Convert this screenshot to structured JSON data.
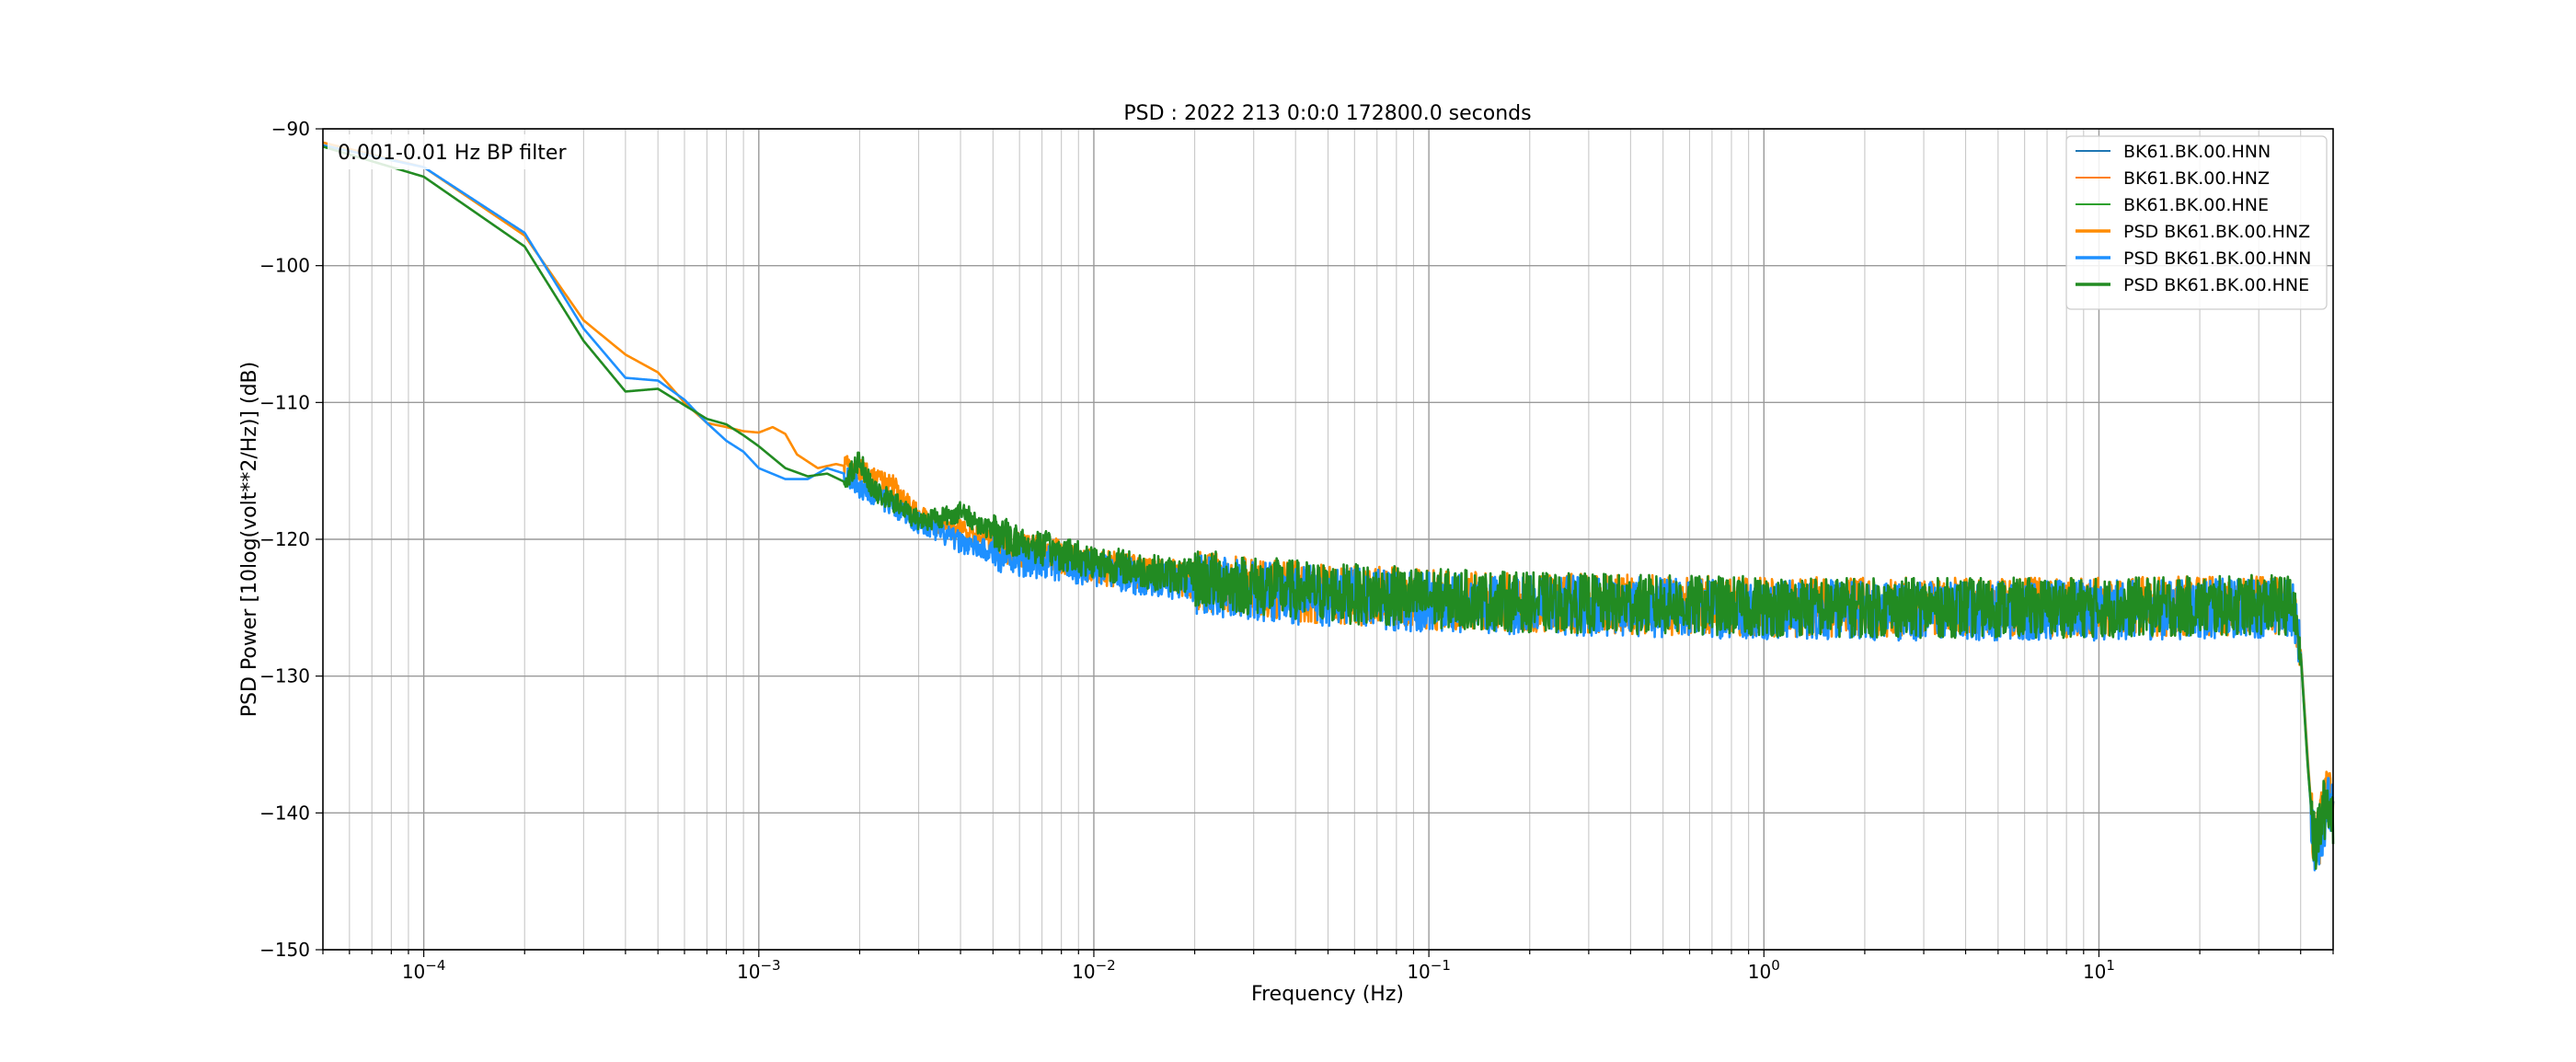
{
  "chart_data": {
    "type": "line",
    "title": "PSD : 2022 213 0:0:0 172800.0 seconds",
    "annotation": "0.001-0.01 Hz BP filter",
    "xlabel": "Frequency (Hz)",
    "ylabel": "PSD Power [10log(volt**2/Hz)] (dB)",
    "xscale": "log",
    "xlim": [
      5e-05,
      50
    ],
    "ylim": [
      -150,
      -90
    ],
    "x_ticks": [
      {
        "value": 0.0001,
        "label": "10−4"
      },
      {
        "value": 0.001,
        "label": "10−3"
      },
      {
        "value": 0.01,
        "label": "10−2"
      },
      {
        "value": 0.1,
        "label": "10−1"
      },
      {
        "value": 1,
        "label": "100"
      },
      {
        "value": 10,
        "label": "101"
      }
    ],
    "y_ticks": [
      -90,
      -100,
      -110,
      -120,
      -130,
      -140,
      -150
    ],
    "y_tick_labels": [
      "−90",
      "−100",
      "−110",
      "−120",
      "−130",
      "−140",
      "−150"
    ],
    "grid": "on",
    "legend_position": "top-right",
    "legend": [
      {
        "label": "BK61.BK.00.HNN",
        "color": "#1f77b4",
        "style": "thin"
      },
      {
        "label": "BK61.BK.00.HNZ",
        "color": "#ff7f0e",
        "style": "thin"
      },
      {
        "label": "BK61.BK.00.HNE",
        "color": "#2ca02c",
        "style": "thin"
      },
      {
        "label": "PSD BK61.BK.00.HNZ",
        "color": "#ff8c00",
        "style": "thick"
      },
      {
        "label": "PSD BK61.BK.00.HNN",
        "color": "#1e90ff",
        "style": "thick"
      },
      {
        "label": "PSD BK61.BK.00.HNE",
        "color": "#228b22",
        "style": "thick"
      }
    ],
    "series": [
      {
        "name": "PSD BK61.BK.00.HNZ",
        "color": "#ff8c00",
        "x": [
          5e-05,
          0.0001,
          0.0002,
          0.0003,
          0.0004,
          0.0005,
          0.0006,
          0.0007,
          0.0008,
          0.0009,
          0.001,
          0.0011,
          0.0012,
          0.0013,
          0.0015,
          0.0017,
          0.002,
          0.0022,
          0.0025,
          0.003,
          0.0035,
          0.004,
          0.005,
          0.006,
          0.008,
          0.01,
          0.015,
          0.02,
          0.03,
          0.05,
          0.1,
          0.2,
          0.5,
          1,
          2,
          5,
          10,
          20,
          30,
          38,
          40,
          42,
          44,
          46,
          48,
          50
        ],
        "y": [
          -91,
          -92.8,
          -97.8,
          -104,
          -106.5,
          -107.8,
          -110,
          -111.5,
          -111.8,
          -112.1,
          -112.2,
          -111.8,
          -112.3,
          -113.8,
          -114.8,
          -114.5,
          -114.9,
          -115.4,
          -116,
          -118.3,
          -119,
          -119.3,
          -120.3,
          -120.8,
          -121.3,
          -122,
          -122.6,
          -123,
          -123.6,
          -124,
          -124.4,
          -124.6,
          -124.8,
          -124.9,
          -125,
          -125,
          -125,
          -124.9,
          -124.8,
          -124.8,
          -128,
          -136,
          -143,
          -141,
          -139,
          -140
        ]
      },
      {
        "name": "PSD BK61.BK.00.HNN",
        "color": "#1e90ff",
        "x": [
          5e-05,
          0.0001,
          0.0002,
          0.0003,
          0.0004,
          0.0005,
          0.0006,
          0.0007,
          0.0008,
          0.0009,
          0.001,
          0.0012,
          0.0014,
          0.0016,
          0.0018,
          0.002,
          0.0022,
          0.0025,
          0.003,
          0.0035,
          0.004,
          0.005,
          0.006,
          0.008,
          0.01,
          0.015,
          0.02,
          0.03,
          0.05,
          0.1,
          0.2,
          0.5,
          1,
          2,
          5,
          10,
          20,
          30,
          38,
          40,
          42,
          44,
          46,
          48,
          50
        ],
        "y": [
          -91.2,
          -92.8,
          -97.6,
          -104.6,
          -108.2,
          -108.4,
          -109.8,
          -111.5,
          -112.8,
          -113.6,
          -114.8,
          -115.6,
          -115.6,
          -114.8,
          -115.2,
          -116.2,
          -116.8,
          -117.5,
          -118.8,
          -119.6,
          -120.2,
          -121,
          -121.4,
          -121.8,
          -122.3,
          -122.9,
          -123.3,
          -123.8,
          -124.2,
          -124.6,
          -124.8,
          -125,
          -125.1,
          -125.2,
          -125.2,
          -125.2,
          -125.1,
          -125,
          -125,
          -128.2,
          -136.4,
          -143.2,
          -141.2,
          -139.4,
          -140.2
        ]
      },
      {
        "name": "PSD BK61.BK.00.HNE",
        "color": "#228b22",
        "x": [
          5e-05,
          0.0001,
          0.0002,
          0.0003,
          0.0004,
          0.0005,
          0.0006,
          0.0007,
          0.0008,
          0.0009,
          0.001,
          0.0012,
          0.0014,
          0.0016,
          0.0018,
          0.002,
          0.0022,
          0.0025,
          0.003,
          0.0035,
          0.004,
          0.0045,
          0.005,
          0.006,
          0.008,
          0.01,
          0.015,
          0.02,
          0.03,
          0.05,
          0.1,
          0.2,
          0.5,
          1,
          2,
          5,
          10,
          20,
          30,
          38,
          40,
          42,
          44,
          46,
          48,
          50
        ],
        "y": [
          -91.3,
          -93.5,
          -98.6,
          -105.5,
          -109.2,
          -109,
          -110.2,
          -111.2,
          -111.6,
          -112.4,
          -113.2,
          -114.8,
          -115.4,
          -115.2,
          -115.8,
          -114.2,
          -116.5,
          -117.2,
          -118.6,
          -118.4,
          -118,
          -118.8,
          -119.4,
          -120.2,
          -121,
          -121.6,
          -122.4,
          -122.8,
          -123.4,
          -123.9,
          -124.3,
          -124.6,
          -124.8,
          -124.9,
          -125,
          -125,
          -125,
          -124.9,
          -124.8,
          -124.8,
          -128.3,
          -136.6,
          -142.6,
          -140.6,
          -139,
          -140.4
        ]
      }
    ]
  }
}
